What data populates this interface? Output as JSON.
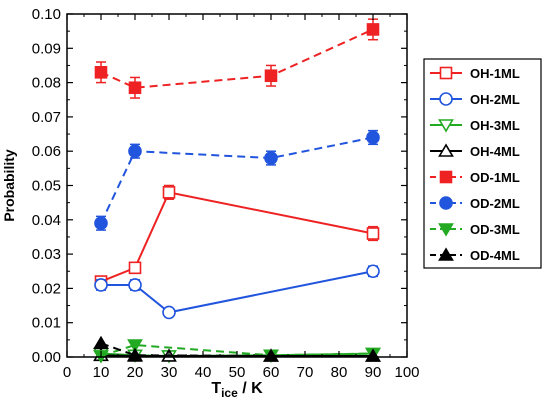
{
  "chart_data": {
    "type": "line",
    "xlabel": {
      "main": "T",
      "sub": "ice",
      "unit": " / K"
    },
    "ylabel": "Probability",
    "xlim": [
      0,
      100
    ],
    "ylim": [
      0,
      0.1
    ],
    "x_ticks": [
      "0",
      "10",
      "20",
      "30",
      "40",
      "50",
      "60",
      "70",
      "80",
      "90",
      "100"
    ],
    "y_ticks": [
      "0.00",
      "0.01",
      "0.02",
      "0.03",
      "0.04",
      "0.05",
      "0.06",
      "0.07",
      "0.08",
      "0.09",
      "0.10"
    ],
    "grid": false,
    "legend_position": "right",
    "series": [
      {
        "name": "OH-1ML",
        "color": "#ee2222",
        "marker": "square",
        "filled": false,
        "dashed": false,
        "x": [
          10,
          20,
          30,
          90
        ],
        "y": [
          0.022,
          0.026,
          0.048,
          0.036
        ],
        "err": [
          0.0015,
          0.0015,
          0.002,
          0.002
        ]
      },
      {
        "name": "OH-2ML",
        "color": "#2255dd",
        "marker": "circle",
        "filled": false,
        "dashed": false,
        "x": [
          10,
          20,
          30,
          90
        ],
        "y": [
          0.021,
          0.021,
          0.013,
          0.025
        ],
        "err": [
          0.0015,
          0.0015,
          0.0008,
          0.0015
        ]
      },
      {
        "name": "OH-3ML",
        "color": "#22aa22",
        "marker": "triangle-down",
        "filled": false,
        "dashed": false,
        "x": [
          10,
          20,
          30,
          60,
          90
        ],
        "y": [
          0.001,
          0.0005,
          0.0003,
          0.0005,
          0.001
        ],
        "err": [
          0,
          0,
          0,
          0,
          0
        ]
      },
      {
        "name": "OH-4ML",
        "color": "#000000",
        "marker": "triangle-up",
        "filled": false,
        "dashed": false,
        "x": [
          10,
          20,
          30,
          60,
          90
        ],
        "y": [
          0.0005,
          0.0003,
          0.0003,
          0.0003,
          0.0003
        ],
        "err": [
          0,
          0,
          0,
          0,
          0
        ]
      },
      {
        "name": "OD-1ML",
        "color": "#ee2222",
        "marker": "square",
        "filled": true,
        "dashed": true,
        "x": [
          10,
          20,
          60,
          90
        ],
        "y": [
          0.083,
          0.0785,
          0.082,
          0.0955
        ],
        "err": [
          0.003,
          0.003,
          0.003,
          0.003
        ]
      },
      {
        "name": "OD-2ML",
        "color": "#2255dd",
        "marker": "circle",
        "filled": true,
        "dashed": true,
        "x": [
          10,
          20,
          60,
          90
        ],
        "y": [
          0.039,
          0.06,
          0.058,
          0.064
        ],
        "err": [
          0.002,
          0.002,
          0.002,
          0.002
        ]
      },
      {
        "name": "OD-3ML",
        "color": "#22aa22",
        "marker": "triangle-down",
        "filled": true,
        "dashed": true,
        "x": [
          10,
          20,
          60,
          90
        ],
        "y": [
          0.0003,
          0.0035,
          0.0005,
          0.001
        ],
        "err": [
          0,
          0,
          0,
          0
        ]
      },
      {
        "name": "OD-4ML",
        "color": "#000000",
        "marker": "triangle-up",
        "filled": true,
        "dashed": true,
        "x": [
          10,
          20,
          60,
          90
        ],
        "y": [
          0.004,
          0.0005,
          0.0003,
          0.0003
        ],
        "err": [
          0,
          0,
          0,
          0
        ]
      }
    ]
  }
}
